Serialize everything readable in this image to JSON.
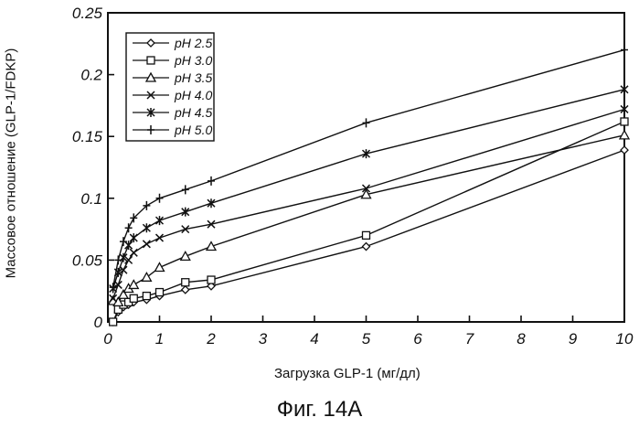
{
  "chart_data": {
    "type": "line",
    "xlabel": "Загрузка GLP-1 (мг/дл)",
    "ylabel": "Массовое отношение (GLP-1/FDKP)",
    "xlim": [
      0,
      10
    ],
    "ylim": [
      0,
      0.25
    ],
    "xticks": [
      0,
      1,
      2,
      3,
      4,
      5,
      6,
      7,
      8,
      9,
      10
    ],
    "xtick_labels": [
      "0",
      "1",
      "2",
      "3",
      "4",
      "5",
      "6",
      "7",
      "8",
      "9",
      "10"
    ],
    "yticks": [
      0,
      0.05,
      0.1,
      0.15,
      0.2,
      0.25
    ],
    "ytick_labels": [
      "0",
      "0.05",
      "0.1",
      "0.15",
      "0.2",
      "0.25"
    ],
    "grid": false,
    "legend_position": "top-left",
    "series": [
      {
        "name": "pH 2.5",
        "marker": "diamond",
        "x": [
          0.1,
          0.2,
          0.3,
          0.4,
          0.5,
          0.75,
          1,
          1.5,
          2,
          5,
          10
        ],
        "y": [
          0,
          0.008,
          0.012,
          0.014,
          0.016,
          0.018,
          0.021,
          0.026,
          0.029,
          0.061,
          0.139
        ]
      },
      {
        "name": "pH 3.0",
        "marker": "square",
        "x": [
          0.1,
          0.2,
          0.3,
          0.4,
          0.5,
          0.75,
          1,
          1.5,
          2,
          5,
          10
        ],
        "y": [
          0,
          0.01,
          0.014,
          0.016,
          0.019,
          0.021,
          0.024,
          0.032,
          0.034,
          0.07,
          0.162
        ]
      },
      {
        "name": "pH 3.5",
        "marker": "triangle",
        "x": [
          0.1,
          0.2,
          0.3,
          0.4,
          0.5,
          0.75,
          1,
          1.5,
          2,
          5,
          10
        ],
        "y": [
          0.017,
          0.016,
          0.022,
          0.027,
          0.03,
          0.036,
          0.044,
          0.053,
          0.061,
          0.103,
          0.151
        ]
      },
      {
        "name": "pH 4.0",
        "marker": "x",
        "x": [
          0.1,
          0.2,
          0.3,
          0.4,
          0.5,
          0.75,
          1,
          1.5,
          2,
          5,
          10
        ],
        "y": [
          0.019,
          0.03,
          0.042,
          0.05,
          0.056,
          0.063,
          0.068,
          0.075,
          0.079,
          0.108,
          0.172
        ]
      },
      {
        "name": "pH 4.5",
        "marker": "asterisk",
        "x": [
          0.1,
          0.2,
          0.3,
          0.4,
          0.5,
          0.75,
          1,
          1.5,
          2,
          5,
          10
        ],
        "y": [
          0.027,
          0.04,
          0.052,
          0.062,
          0.068,
          0.076,
          0.082,
          0.089,
          0.096,
          0.136,
          0.188
        ]
      },
      {
        "name": "pH 5.0",
        "marker": "plus",
        "x": [
          0.1,
          0.2,
          0.3,
          0.4,
          0.5,
          0.75,
          1,
          1.5,
          2,
          5,
          10
        ],
        "y": [
          0.028,
          0.05,
          0.065,
          0.076,
          0.084,
          0.094,
          0.1,
          0.107,
          0.114,
          0.161,
          0.22
        ]
      }
    ]
  },
  "caption": "Фиг. 14A"
}
